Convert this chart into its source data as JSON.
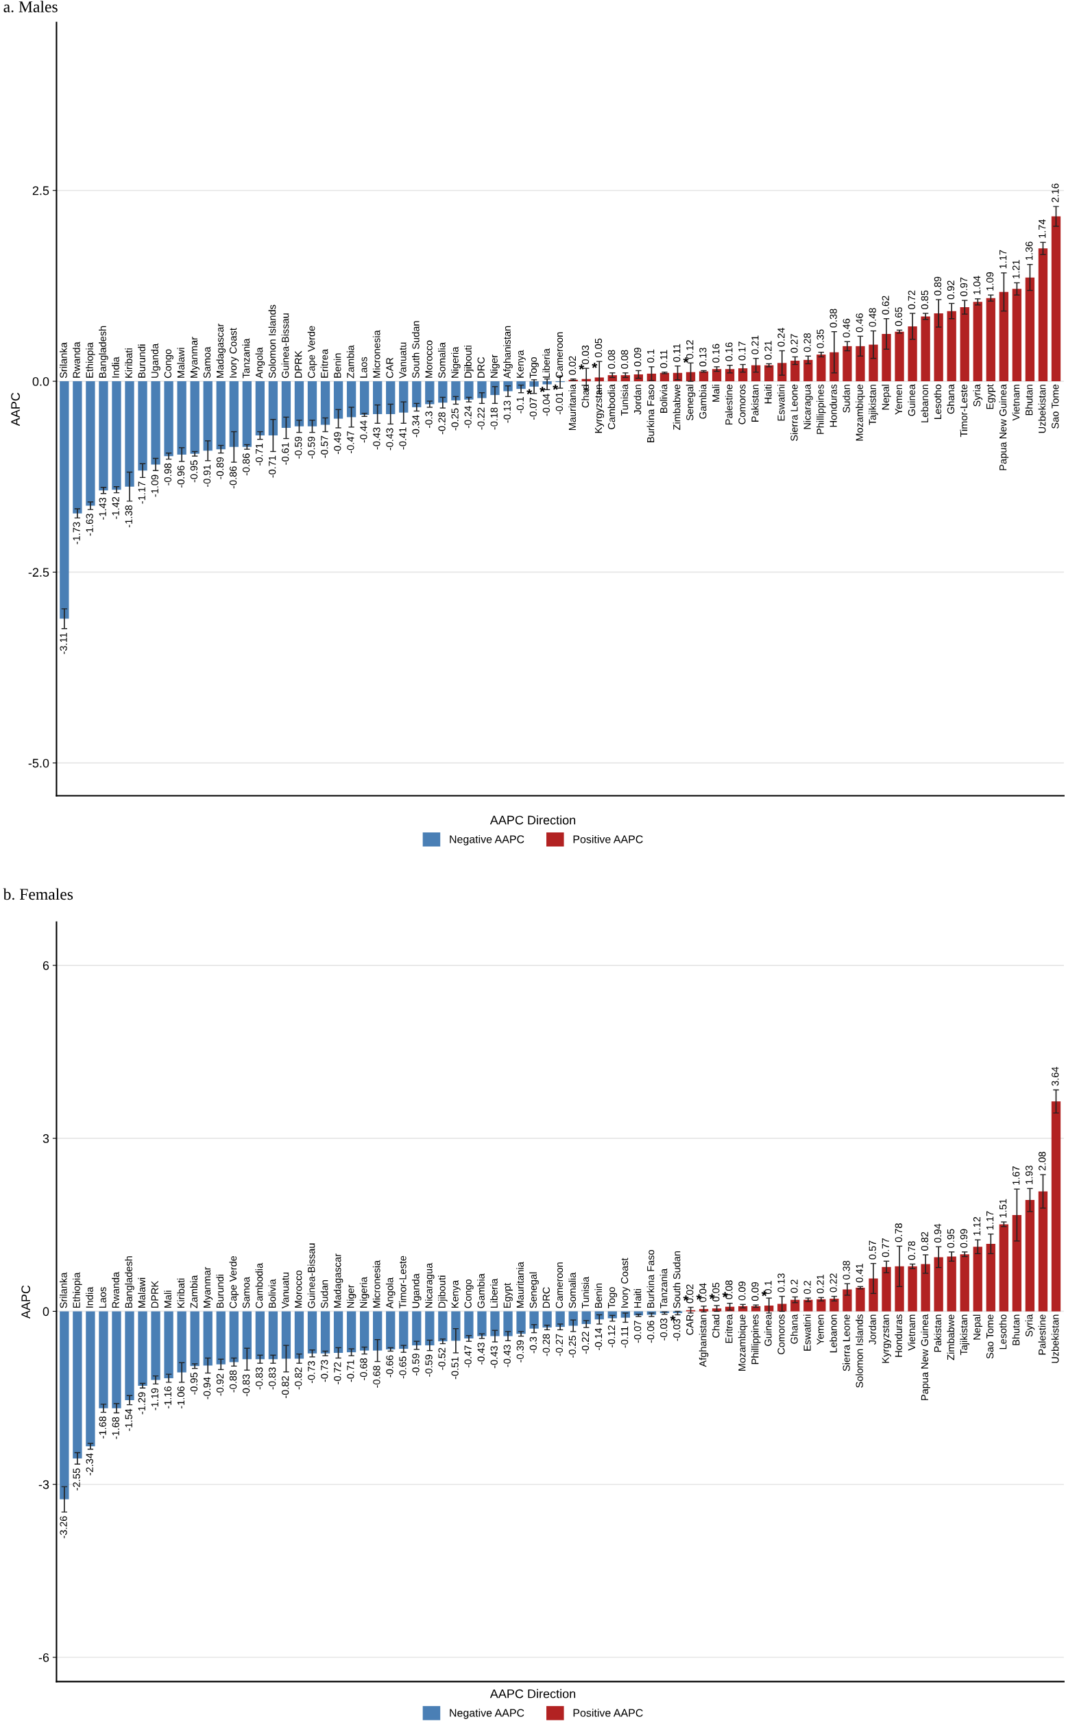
{
  "chart_data": [
    {
      "type": "bar",
      "title": "a. Males",
      "ylabel": "AAPC",
      "legend_title": "AAPC Direction",
      "legend": "bottom",
      "grid": "y",
      "data_labels": true,
      "categories": [
        "Srilanka",
        "Rwanda",
        "Ethiopia",
        "Bangladesh",
        "India",
        "Kiribati",
        "Burundi",
        "Uganda",
        "Congo",
        "Malawi",
        "Myanmar",
        "Samoa",
        "Madagascar",
        "Ivory Coast",
        "Tanzania",
        "Angola",
        "Solomon Islands",
        "Guinea-Bissau",
        "DPRK",
        "Cape Verde",
        "Eritrea",
        "Benin",
        "Zambia",
        "Laos",
        "Micronesia",
        "CAR",
        "Vanuatu",
        "South Sudan",
        "Morocco",
        "Somalia",
        "Nigeria",
        "Djibouti",
        "DRC",
        "Niger",
        "Afghanistan",
        "Kenya",
        "Togo",
        "Liberia",
        "Cameroon",
        "Mauritania",
        "Chad",
        "Kyrgyzstan",
        "Cambodia",
        "Tunisia",
        "Jordan",
        "Burkina Faso",
        "Bolivia",
        "Zimbabwe",
        "Senegal",
        "Gambia",
        "Mali",
        "Palestine",
        "Comoros",
        "Pakistan",
        "Haiti",
        "Eswatini",
        "Sierra Leone",
        "Nicaragua",
        "Phillippines",
        "Honduras",
        "Sudan",
        "Mozambique",
        "Tajikistan",
        "Nepal",
        "Yemen",
        "Guinea",
        "Lebanon",
        "Lesotho",
        "Ghana",
        "Timor-Leste",
        "Syria",
        "Egypt",
        "Papua New Guinea",
        "Vietnam",
        "Bhutan",
        "Uzbekistan",
        "Sao Tome"
      ],
      "series": [
        {
          "name": "Negative AAPC",
          "color": "#4a7fb5",
          "values": [
            -3.11,
            -1.73,
            -1.63,
            -1.43,
            -1.42,
            -1.38,
            -1.17,
            -1.09,
            -0.98,
            -0.96,
            -0.95,
            -0.91,
            -0.89,
            -0.86,
            -0.86,
            -0.71,
            -0.71,
            -0.61,
            -0.59,
            -0.59,
            -0.57,
            -0.49,
            -0.47,
            -0.44,
            -0.43,
            -0.43,
            -0.41,
            -0.34,
            -0.3,
            -0.28,
            -0.25,
            -0.24,
            -0.22,
            -0.18,
            -0.13,
            -0.1,
            -0.07,
            -0.04,
            -0.01,
            null,
            null,
            null,
            null,
            null,
            null,
            null,
            null,
            null,
            null,
            null,
            null,
            null,
            null,
            null,
            null,
            null,
            null,
            null,
            null,
            null,
            null,
            null,
            null,
            null,
            null,
            null,
            null,
            null,
            null,
            null,
            null,
            null,
            null,
            null,
            null,
            null,
            null
          ],
          "errors": [
            0.13,
            0.06,
            0.05,
            0.04,
            0.04,
            0.19,
            0.09,
            0.08,
            0.04,
            0.09,
            0.03,
            0.13,
            0.05,
            0.2,
            0.03,
            0.05,
            0.21,
            0.14,
            0.08,
            0.08,
            0.09,
            0.12,
            0.13,
            0.02,
            0.12,
            0.13,
            0.14,
            0.05,
            0.04,
            0.07,
            0.05,
            0.03,
            0.07,
            0.11,
            0.07,
            0.05,
            0.09,
            0.07,
            0.08,
            null,
            null,
            null,
            null,
            null,
            null,
            null,
            null,
            null,
            null,
            null,
            null,
            null,
            null,
            null,
            null,
            null,
            null,
            null,
            null,
            null,
            null,
            null,
            null,
            null,
            null,
            null,
            null,
            null,
            null,
            null,
            null,
            null,
            null,
            null,
            null,
            null,
            null
          ]
        },
        {
          "name": "Positive AAPC",
          "color": "#b22222",
          "values": [
            null,
            null,
            null,
            null,
            null,
            null,
            null,
            null,
            null,
            null,
            null,
            null,
            null,
            null,
            null,
            null,
            null,
            null,
            null,
            null,
            null,
            null,
            null,
            null,
            null,
            null,
            null,
            null,
            null,
            null,
            null,
            null,
            null,
            null,
            null,
            null,
            null,
            null,
            null,
            0.02,
            0.03,
            0.05,
            0.08,
            0.08,
            0.09,
            0.1,
            0.11,
            0.11,
            0.12,
            0.13,
            0.16,
            0.16,
            0.17,
            0.21,
            0.21,
            0.24,
            0.27,
            0.28,
            0.35,
            0.38,
            0.46,
            0.46,
            0.48,
            0.62,
            0.65,
            0.72,
            0.85,
            0.89,
            0.92,
            0.97,
            1.04,
            1.09,
            1.17,
            1.21,
            1.36,
            1.74,
            2.16
          ],
          "errors": [
            null,
            null,
            null,
            null,
            null,
            null,
            null,
            null,
            null,
            null,
            null,
            null,
            null,
            null,
            null,
            null,
            null,
            null,
            null,
            null,
            null,
            null,
            null,
            null,
            null,
            null,
            null,
            null,
            null,
            null,
            null,
            null,
            null,
            null,
            null,
            null,
            null,
            null,
            null,
            0.01,
            0.14,
            0.21,
            0.03,
            0.03,
            0.05,
            0.09,
            0.01,
            0.09,
            0.12,
            0.01,
            0.03,
            0.05,
            0.05,
            0.09,
            0.02,
            0.16,
            0.05,
            0.05,
            0.03,
            0.27,
            0.06,
            0.13,
            0.18,
            0.2,
            0.02,
            0.17,
            0.04,
            0.18,
            0.1,
            0.09,
            0.04,
            0.04,
            0.25,
            0.08,
            0.17,
            0.08,
            0.13
          ]
        }
      ],
      "ylim": [
        -5.43,
        4.7
      ],
      "yticks": [
        {
          "value": -5,
          "label": "-5.0"
        },
        {
          "value": -2.5,
          "label": "-2.5"
        },
        {
          "value": 0,
          "label": "0.0"
        },
        {
          "value": 2.5,
          "label": "2.5"
        }
      ],
      "annotations": [
        {
          "text": "*",
          "x": "Togo",
          "y": -0.07
        },
        {
          "text": "*",
          "x": "Liberia",
          "y": -0.04
        },
        {
          "text": "*",
          "x": "Cameroon",
          "y": -0.01
        },
        {
          "text": "*",
          "x": "Chad",
          "y": 0.03
        },
        {
          "text": "*",
          "x": "Kyrgyzstan",
          "y": 0.05
        },
        {
          "text": "*",
          "x": "Senegal",
          "y": 0.12
        }
      ]
    },
    {
      "type": "bar",
      "title": "b. Females",
      "ylabel": "AAPC",
      "legend_title": "AAPC Direction",
      "legend": "bottom",
      "grid": "y",
      "data_labels": true,
      "categories": [
        "Srilanka",
        "Ethiopia",
        "India",
        "Laos",
        "Rwanda",
        "Bangladesh",
        "Malawi",
        "DPRK",
        "Mali",
        "Kiribati",
        "Zambia",
        "Myanmar",
        "Burundi",
        "Cape Verde",
        "Samoa",
        "Cambodia",
        "Bolivia",
        "Vanuatu",
        "Morocco",
        "Guinea-Bissau",
        "Sudan",
        "Madagascar",
        "Niger",
        "Nigeria",
        "Micronesia",
        "Angola",
        "Timor-Leste",
        "Uganda",
        "Nicaragua",
        "Djibouti",
        "Kenya",
        "Congo",
        "Gambia",
        "Liberia",
        "Egypt",
        "Mauritania",
        "Senegal",
        "DRC",
        "Cameroon",
        "Somalia",
        "Tunisia",
        "Benin",
        "Togo",
        "Ivory Coast",
        "Haiti",
        "Burkina Faso",
        "Tanzania",
        "South Sudan",
        "CAR",
        "Afghanistan",
        "Chad",
        "Eritrea",
        "Mozambique",
        "Phillippines",
        "Guinea",
        "Comoros",
        "Ghana",
        "Eswatini",
        "Yemen",
        "Lebanon",
        "Sierra Leone",
        "Solomon Islands",
        "Jordan",
        "Kyrgyzstan",
        "Honduras",
        "Vietnam",
        "Papua New Guinea",
        "Pakistan",
        "Zimbabwe",
        "Tajikistan",
        "Nepal",
        "Sao Tome",
        "Lesotho",
        "Bhutan",
        "Syria",
        "Palestine",
        "Uzbekistan"
      ],
      "series": [
        {
          "name": "Negative AAPC",
          "color": "#4a7fb5",
          "values": [
            -3.26,
            -2.55,
            -2.34,
            -1.68,
            -1.68,
            -1.54,
            -1.29,
            -1.19,
            -1.16,
            -1.06,
            -0.95,
            -0.94,
            -0.92,
            -0.88,
            -0.83,
            -0.83,
            -0.83,
            -0.82,
            -0.82,
            -0.73,
            -0.73,
            -0.72,
            -0.71,
            -0.68,
            -0.68,
            -0.66,
            -0.65,
            -0.59,
            -0.59,
            -0.52,
            -0.51,
            -0.47,
            -0.43,
            -0.43,
            -0.43,
            -0.39,
            -0.3,
            -0.28,
            -0.27,
            -0.25,
            -0.22,
            -0.14,
            -0.12,
            -0.11,
            -0.07,
            -0.06,
            -0.03,
            -0.03,
            null,
            null,
            null,
            null,
            null,
            null,
            null,
            null,
            null,
            null,
            null,
            null,
            null,
            null,
            null,
            null,
            null,
            null,
            null,
            null,
            null,
            null,
            null,
            null,
            null,
            null,
            null,
            null,
            null
          ],
          "errors": [
            0.22,
            0.1,
            0.05,
            0.07,
            0.08,
            0.08,
            0.04,
            0.07,
            0.07,
            0.17,
            0.04,
            0.13,
            0.09,
            0.07,
            0.19,
            0.07,
            0.07,
            0.23,
            0.08,
            0.06,
            0.04,
            0.09,
            0.06,
            0.06,
            0.19,
            0.03,
            0.06,
            0.07,
            0.09,
            0.04,
            0.21,
            0.05,
            0.04,
            0.1,
            0.08,
            0.04,
            0.07,
            0.04,
            0.05,
            0.1,
            0.06,
            0.08,
            0.05,
            0.08,
            0.02,
            0.03,
            0.02,
            0.03,
            null,
            null,
            null,
            null,
            null,
            null,
            null,
            null,
            null,
            null,
            null,
            null,
            null,
            null,
            null,
            null,
            null,
            null,
            null,
            null,
            null,
            null,
            null,
            null,
            null,
            null,
            null,
            null,
            null
          ]
        },
        {
          "name": "Positive AAPC",
          "color": "#b22222",
          "values": [
            null,
            null,
            null,
            null,
            null,
            null,
            null,
            null,
            null,
            null,
            null,
            null,
            null,
            null,
            null,
            null,
            null,
            null,
            null,
            null,
            null,
            null,
            null,
            null,
            null,
            null,
            null,
            null,
            null,
            null,
            null,
            null,
            null,
            null,
            null,
            null,
            null,
            null,
            null,
            null,
            null,
            null,
            null,
            null,
            null,
            null,
            null,
            null,
            0.02,
            0.04,
            0.05,
            0.08,
            0.09,
            0.09,
            0.1,
            0.13,
            0.2,
            0.2,
            0.21,
            0.22,
            0.38,
            0.41,
            0.57,
            0.77,
            0.78,
            0.78,
            0.82,
            0.94,
            0.95,
            0.99,
            1.12,
            1.17,
            1.51,
            1.67,
            1.93,
            2.08,
            3.64
          ],
          "errors": [
            null,
            null,
            null,
            null,
            null,
            null,
            null,
            null,
            null,
            null,
            null,
            null,
            null,
            null,
            null,
            null,
            null,
            null,
            null,
            null,
            null,
            null,
            null,
            null,
            null,
            null,
            null,
            null,
            null,
            null,
            null,
            null,
            null,
            null,
            null,
            null,
            null,
            null,
            null,
            null,
            null,
            null,
            null,
            null,
            null,
            null,
            null,
            null,
            0.05,
            0.05,
            0.05,
            0.06,
            0.03,
            0.02,
            0.13,
            0.13,
            0.05,
            0.03,
            0.03,
            0.04,
            0.1,
            0.02,
            0.26,
            0.1,
            0.35,
            0.04,
            0.16,
            0.18,
            0.08,
            0.04,
            0.12,
            0.17,
            0.04,
            0.45,
            0.2,
            0.29,
            0.2
          ]
        }
      ],
      "ylim": [
        -6.42,
        6.75
      ],
      "yticks": [
        -6,
        -3,
        0,
        3,
        6
      ],
      "annotations": [
        {
          "text": "*",
          "x": "South Sudan",
          "y": -0.03
        },
        {
          "text": "*",
          "x": "CAR",
          "y": 0.02
        },
        {
          "text": "*",
          "x": "Afghanistan",
          "y": 0.04
        },
        {
          "text": "*",
          "x": "Chad",
          "y": 0.05
        },
        {
          "text": "*",
          "x": "Eritrea",
          "y": 0.08
        },
        {
          "text": "*",
          "x": "Guinea",
          "y": 0.1
        }
      ]
    }
  ]
}
